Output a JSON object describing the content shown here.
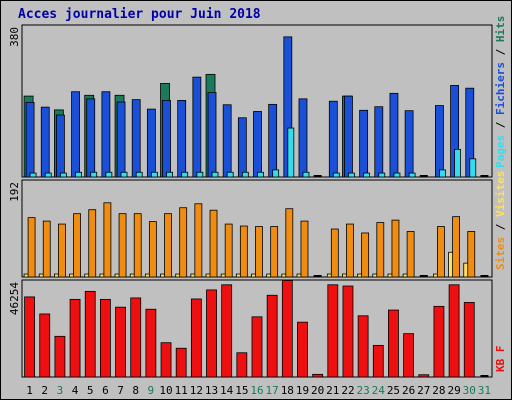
{
  "title": "Acces journalier pour Juin 2018",
  "chart_data": [
    {
      "type": "bar",
      "panel": "hits-files-pages",
      "ymax_label": "380",
      "ylim": [
        0,
        380
      ],
      "series": [
        {
          "name": "Hits",
          "color": "#1a7a5a",
          "values": [
            205,
            0,
            170,
            0,
            207,
            0,
            207,
            0,
            0,
            237,
            0,
            0,
            260,
            0,
            0,
            0,
            0,
            0,
            0,
            0,
            0,
            205,
            0,
            0,
            0,
            0,
            0,
            0,
            0,
            0,
            0
          ]
        },
        {
          "name": "Fichiers",
          "color": "#1a4fd8",
          "values": [
            189,
            177,
            157,
            216,
            198,
            216,
            190,
            196,
            172,
            194,
            194,
            253,
            214,
            183,
            150,
            166,
            184,
            355,
            198,
            0,
            192,
            205,
            169,
            178,
            212,
            168,
            0,
            181,
            232,
            225,
            0
          ]
        },
        {
          "name": "Pages",
          "color": "#33ddee",
          "values": [
            10,
            10,
            10,
            12,
            12,
            12,
            12,
            12,
            12,
            12,
            12,
            12,
            12,
            12,
            12,
            12,
            18,
            124,
            12,
            0,
            10,
            10,
            10,
            10,
            10,
            10,
            0,
            18,
            70,
            46,
            0
          ]
        }
      ],
      "hits_values": [
        205,
        0,
        170,
        0,
        207,
        0,
        207,
        0,
        0,
        237,
        0,
        0,
        260,
        0,
        0,
        0,
        0,
        0,
        0,
        0,
        0,
        205,
        0,
        0,
        0,
        0,
        0,
        0,
        0,
        0,
        0
      ]
    },
    {
      "type": "bar",
      "panel": "visits-sites",
      "ymax_label": "192",
      "ylim": [
        0,
        192
      ],
      "series": [
        {
          "name": "Visites",
          "color": "#f08c10",
          "values": [
            120,
            113,
            107,
            128,
            136,
            150,
            128,
            128,
            112,
            128,
            140,
            148,
            135,
            107,
            103,
            102,
            102,
            138,
            113,
            0,
            97,
            107,
            89,
            110,
            115,
            92,
            0,
            102,
            122,
            92,
            0
          ]
        },
        {
          "name": "Sites",
          "color": "#ffe060",
          "values": [
            6,
            6,
            6,
            6,
            6,
            6,
            6,
            6,
            6,
            6,
            6,
            6,
            6,
            6,
            6,
            6,
            6,
            6,
            6,
            0,
            6,
            6,
            6,
            6,
            6,
            6,
            0,
            6,
            50,
            28,
            0
          ]
        }
      ]
    },
    {
      "type": "bar",
      "panel": "kb",
      "ymax_label": "46254",
      "ylim": [
        0,
        46254
      ],
      "series": [
        {
          "name": "KB F",
          "color": "#ee1010",
          "values": [
            39000,
            30700,
            19800,
            37800,
            41700,
            37800,
            34000,
            38500,
            33000,
            16700,
            14000,
            38000,
            42400,
            44900,
            11800,
            29300,
            39800,
            47000,
            26700,
            1300,
            44900,
            44300,
            29800,
            15400,
            32600,
            21100,
            1100,
            34400,
            44900,
            36300,
            0
          ]
        }
      ]
    }
  ],
  "x_labels": [
    "1",
    "2",
    "3",
    "4",
    "5",
    "6",
    "7",
    "8",
    "9",
    "10",
    "11",
    "12",
    "13",
    "14",
    "15",
    "16",
    "17",
    "18",
    "19",
    "20",
    "21",
    "22",
    "23",
    "24",
    "25",
    "26",
    "27",
    "28",
    "29",
    "30",
    "31"
  ],
  "x_label_colors": [
    "#000000",
    "#000000",
    "#1a7a5a",
    "#000000",
    "#000000",
    "#000000",
    "#000000",
    "#000000",
    "#1a7a5a",
    "#000000",
    "#000000",
    "#000000",
    "#000000",
    "#000000",
    "#000000",
    "#1a7a5a",
    "#1a7a5a",
    "#000000",
    "#000000",
    "#000000",
    "#000000",
    "#000000",
    "#1a7a5a",
    "#1a7a5a",
    "#000000",
    "#000000",
    "#000000",
    "#000000",
    "#000000",
    "#1a7a5a",
    "#1a7a5a"
  ],
  "right_legends": {
    "top": [
      {
        "text": "Pages",
        "color": "#33ddee"
      },
      {
        "text": " / ",
        "color": "#000000"
      },
      {
        "text": "Fichiers",
        "color": "#1a4fd8"
      },
      {
        "text": " / ",
        "color": "#000000"
      },
      {
        "text": "Hits",
        "color": "#1a7a5a"
      }
    ],
    "middle": [
      {
        "text": "Sites",
        "color": "#f08c10"
      },
      {
        "text": " / ",
        "color": "#000000"
      },
      {
        "text": "Visites",
        "color": "#ffe060"
      }
    ],
    "bottom": [
      {
        "text": "KB F",
        "color": "#ee1010"
      }
    ]
  },
  "colors": {
    "bg": "#c0c0c0",
    "title": "#0000aa",
    "frame": "#000000"
  }
}
